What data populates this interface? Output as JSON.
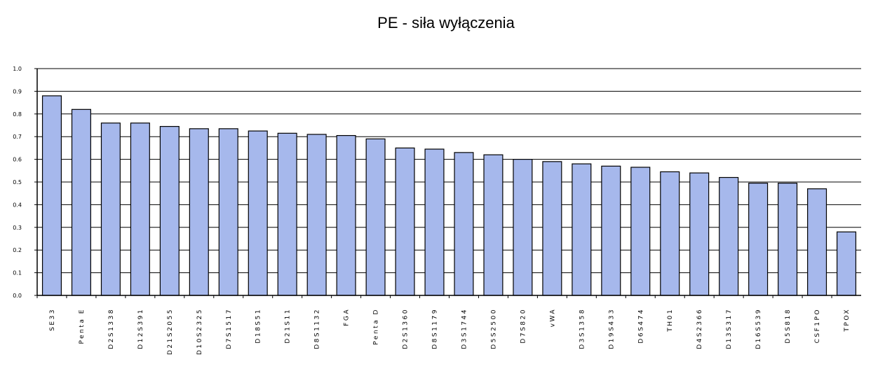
{
  "chart_data": {
    "type": "bar",
    "title": "PE - siła wyłączenia",
    "xlabel": "",
    "ylabel": "",
    "ylim": [
      0,
      1.0
    ],
    "yticks": [
      "0.0",
      "0.1",
      "0.2",
      "0.3",
      "0.4",
      "0.5",
      "0.6",
      "0.7",
      "0.8",
      "0.9",
      "1.0"
    ],
    "grid": true,
    "legend": "none",
    "bar_color": "#a6b8ec",
    "categories": [
      "SE33",
      "Penta E",
      "D2S1338",
      "D12S391",
      "D21S2055",
      "D10S2325",
      "D7S1517",
      "D18S51",
      "D21S11",
      "D8S1132",
      "FGA",
      "Penta D",
      "D2S1360",
      "D8S1179",
      "D3S1744",
      "D5S2500",
      "D7S820",
      "vWA",
      "D3S1358",
      "D19S433",
      "D6S474",
      "TH01",
      "D4S2366",
      "D13S317",
      "D16S539",
      "D5S818",
      "CSF1PO",
      "TPOX"
    ],
    "values": [
      0.88,
      0.82,
      0.76,
      0.76,
      0.745,
      0.735,
      0.735,
      0.725,
      0.715,
      0.71,
      0.705,
      0.69,
      0.65,
      0.645,
      0.63,
      0.62,
      0.6,
      0.59,
      0.58,
      0.57,
      0.565,
      0.545,
      0.54,
      0.52,
      0.495,
      0.495,
      0.47,
      0.28
    ]
  }
}
